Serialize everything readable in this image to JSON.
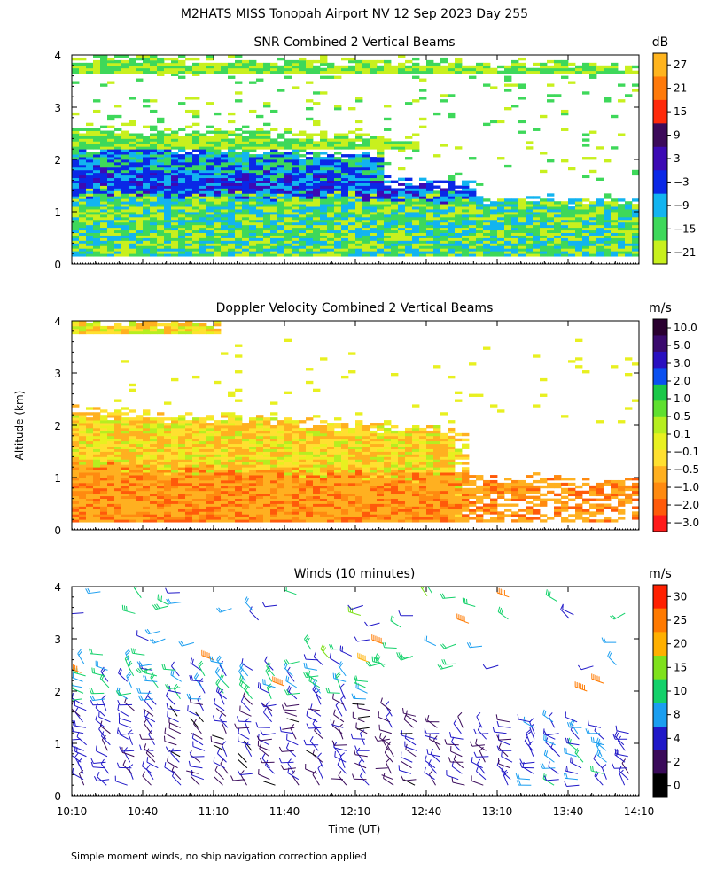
{
  "figure": {
    "title": "M2HATS MISS Tonopah Airport NV  12 Sep 2023 Day 255",
    "ylabel": "Altitude (km)",
    "xlabel": "Time (UT)",
    "footnote": "Simple moment winds, no ship navigation correction applied"
  },
  "colors": {
    "wind_palette": [
      "#000000",
      "#3a0a5a",
      "#2018c8",
      "#1a9ef0",
      "#13d16a",
      "#7fe11c",
      "#ffb000",
      "#ff7a00",
      "#ff2000"
    ],
    "velocity_palette": [
      "#ff1a1a",
      "#ff5a0a",
      "#ff8a10",
      "#ffb020",
      "#ffe030",
      "#e8f020",
      "#b6ee20",
      "#5fe030",
      "#1ac848",
      "#0a50f0",
      "#2a10c0",
      "#3a0a6e",
      "#2a0030"
    ],
    "snr_palette": [
      "#c8f01e",
      "#3ed85a",
      "#12b4f0",
      "#0a28e6",
      "#3c0ab4",
      "#3c0a5a",
      "#ff2a0a",
      "#ff7a0a",
      "#ffb41e"
    ]
  },
  "chart_data": [
    {
      "type": "heatmap",
      "title": "SNR Combined 2 Vertical Beams",
      "colorbar_unit": "dB",
      "colorbar_ticks": [
        "27",
        "21",
        "15",
        "9",
        "3",
        "−3",
        "−9",
        "−15",
        "−21"
      ],
      "x_ticks": [
        "10:10",
        "10:40",
        "11:10",
        "11:40",
        "12:10",
        "12:40",
        "13:10",
        "13:40",
        "14:10"
      ],
      "xlim": [
        0,
        240
      ],
      "y_ticks": [
        "0",
        "1",
        "2",
        "3",
        "4"
      ],
      "ylim": [
        0,
        4
      ],
      "bands": [
        {
          "y0": 0.15,
          "y1_start": 2.25,
          "y1_end": 1.9,
          "t_end": 130,
          "level": "cyan"
        },
        {
          "y0": 0.55,
          "y1_start": 1.85,
          "y1_end": 1.3,
          "t_end": 170,
          "level": "blue"
        },
        {
          "y0": 0.15,
          "y1_start": 1.35,
          "y1_end": 1.2,
          "t_end": 240,
          "level": "green"
        },
        {
          "y0": 3.6,
          "y1_start": 3.95,
          "y1_end": 3.75,
          "t_end": 240,
          "level": "lime"
        },
        {
          "y0": 2.2,
          "y1_start": 2.6,
          "y1_end": 2.2,
          "t_end": 145,
          "level": "lime"
        }
      ]
    },
    {
      "type": "heatmap",
      "title": "Doppler Velocity Combined 2 Vertical Beams",
      "colorbar_unit": "m/s",
      "colorbar_ticks": [
        "10.0",
        "5.0",
        "3.0",
        "2.0",
        "1.0",
        "0.5",
        "0.1",
        "−0.1",
        "−0.5",
        "−1.0",
        "−2.0",
        "−3.0"
      ],
      "x_ticks": [
        "10:10",
        "10:40",
        "11:10",
        "11:40",
        "12:10",
        "12:40",
        "13:10",
        "13:40",
        "14:10"
      ],
      "xlim": [
        0,
        240
      ],
      "y_ticks": [
        "0",
        "1",
        "2",
        "3",
        "4"
      ],
      "ylim": [
        0,
        4
      ],
      "bands": [
        {
          "y0": 0.15,
          "y1_start": 2.25,
          "y1_end": 1.7,
          "t_end": 165,
          "level": "yellow"
        },
        {
          "y0": 0.15,
          "y1_start": 1.2,
          "y1_end": 0.9,
          "t_end": 240,
          "level": "orange"
        },
        {
          "y0": 3.7,
          "y1_start": 3.95,
          "y1_end": 3.75,
          "t_end": 60,
          "level": "yellow"
        }
      ]
    },
    {
      "type": "scatter",
      "subtype": "wind_barbs",
      "title": "Winds (10 minutes)",
      "colorbar_unit": "m/s",
      "colorbar_ticks": [
        "30",
        "25",
        "20",
        "15",
        "10",
        "8",
        "4",
        "2",
        "0"
      ],
      "x_ticks": [
        "10:10",
        "10:40",
        "11:10",
        "11:40",
        "12:10",
        "12:40",
        "13:10",
        "13:40",
        "14:10"
      ],
      "xlim": [
        0,
        240
      ],
      "y_ticks": [
        "0",
        "1",
        "2",
        "3",
        "4"
      ],
      "ylim": [
        0,
        4
      ],
      "barb_times_min": [
        5,
        15,
        25,
        35,
        45,
        55,
        65,
        75,
        85,
        95,
        105,
        115,
        125,
        135,
        145,
        155,
        165,
        175,
        185,
        195,
        205,
        215,
        225,
        235
      ],
      "barb_top_km": [
        2.35,
        2.5,
        2.6,
        2.55,
        2.5,
        2.45,
        2.45,
        2.5,
        2.45,
        2.4,
        2.45,
        2.3,
        2.2,
        1.7,
        1.55,
        1.5,
        1.4,
        1.4,
        1.5,
        1.5,
        1.45,
        1.5,
        1.35,
        1.2
      ],
      "speed_ms": [
        6,
        5,
        5,
        4,
        4,
        4,
        4,
        4,
        4,
        4,
        4,
        4,
        4,
        4,
        4,
        5,
        5,
        5,
        6,
        7,
        8,
        9,
        8,
        6
      ],
      "upper_barbs": [
        {
          "t": 168,
          "z": 3.3,
          "speed": 27
        },
        {
          "t": 132,
          "z": 2.9,
          "speed": 28
        },
        {
          "t": 4,
          "z": 2.35,
          "speed": 26
        },
        {
          "t": 60,
          "z": 2.6,
          "speed": 25
        },
        {
          "t": 218,
          "z": 2.0,
          "speed": 28
        },
        {
          "t": 225,
          "z": 2.15,
          "speed": 27
        },
        {
          "t": 126,
          "z": 2.55,
          "speed": 24
        },
        {
          "t": 90,
          "z": 2.1,
          "speed": 29
        },
        {
          "t": 185,
          "z": 3.8,
          "speed": 26
        }
      ]
    }
  ]
}
